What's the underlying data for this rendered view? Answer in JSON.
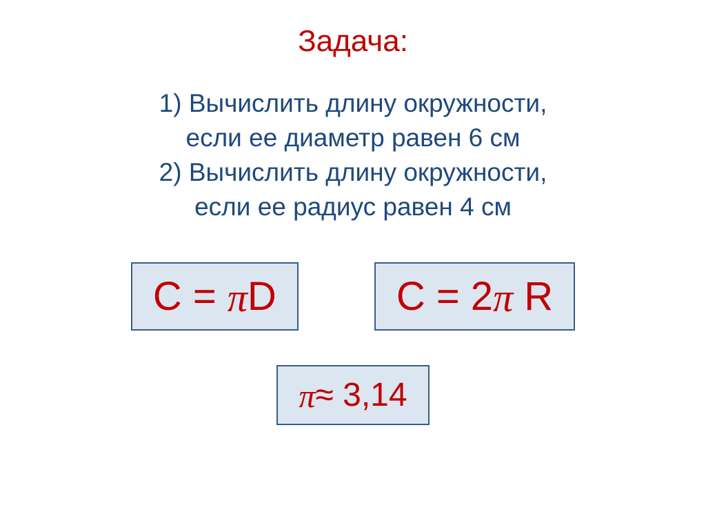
{
  "title": {
    "text": "Задача:",
    "color": "#c00000",
    "fontsize": 44
  },
  "problems": {
    "color": "#1f497d",
    "fontsize": 37,
    "items": [
      {
        "num": "1)",
        "line1": "Вычислить длину окружности,",
        "line2": "если ее диаметр равен 6 см"
      },
      {
        "num": "2)",
        "line1": "Вычислить длину окружности,",
        "line2": "если ее радиус равен 4 см"
      }
    ]
  },
  "formulas": {
    "box_border_color": "#385d8a",
    "box_background_color": "#dce6f0",
    "text_color": "#c00000",
    "top": [
      {
        "prefix": "C = ",
        "pi_after": "D",
        "fontsize": 58
      },
      {
        "prefix": "C = 2",
        "pi_after": " R",
        "fontsize": 58
      }
    ],
    "bottom": {
      "pi_after": "≈ 3,14",
      "fontsize": 48
    }
  },
  "pi_glyph": "π"
}
